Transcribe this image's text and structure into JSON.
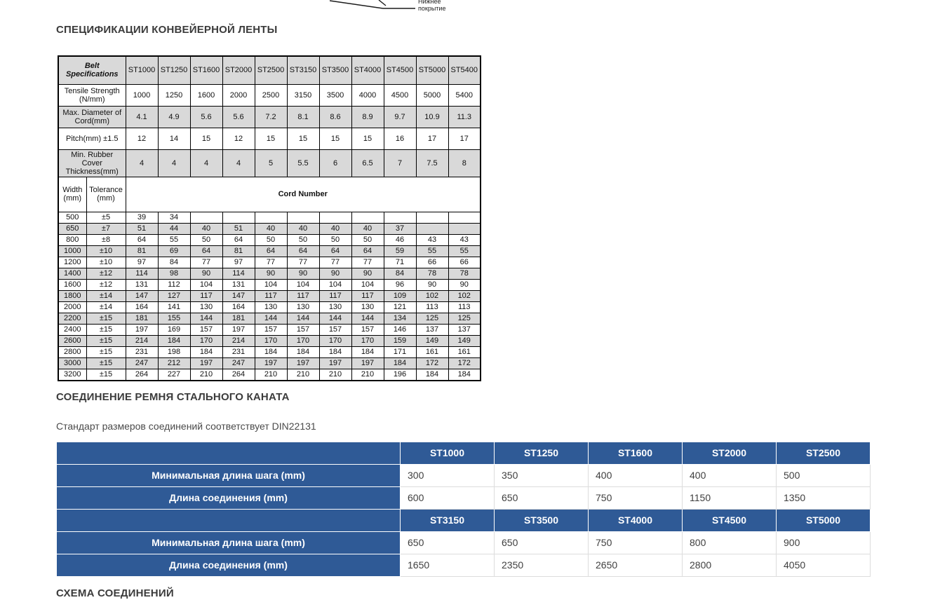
{
  "colors": {
    "table_shade": "#d9d9d9",
    "splice_blue": "#2f5a96",
    "heading_text": "#3b3b3b"
  },
  "diagram_fragment": {
    "label": "Нижнее покрытие"
  },
  "sections": {
    "specs_heading": "СПЕЦИФИКАЦИИ КОНВЕЙЕРНОЙ ЛЕНТЫ",
    "splice_heading": "СОЕДИНЕНИЕ РЕМНЯ СТАЛЬНОГО КАНАТА",
    "splice_note": "Стандарт размеров соединений соответствует DIN22131",
    "diagram_heading": "СХЕМА СОЕДИНЕНИЙ"
  },
  "spec_table": {
    "corner_label": "Belt Specifications",
    "columns": [
      "ST1000",
      "ST1250",
      "ST1600",
      "ST2000",
      "ST2500",
      "ST3150",
      "ST3500",
      "ST4000",
      "ST4500",
      "ST5000",
      "ST5400"
    ],
    "property_rows": [
      {
        "label": "Tensile Strength (N/mm)",
        "values": [
          "1000",
          "1250",
          "1600",
          "2000",
          "2500",
          "3150",
          "3500",
          "4000",
          "4500",
          "5000",
          "5400"
        ]
      },
      {
        "label": "Max. Diameter of Cord(mm)",
        "values": [
          "4.1",
          "4.9",
          "5.6",
          "5.6",
          "7.2",
          "8.1",
          "8.6",
          "8.9",
          "9.7",
          "10.9",
          "11.3"
        ]
      },
      {
        "label": "Pitch(mm) ±1.5",
        "values": [
          "12",
          "14",
          "15",
          "12",
          "15",
          "15",
          "15",
          "15",
          "16",
          "17",
          "17"
        ]
      },
      {
        "label": "Min. Rubber Cover Thickness(mm)",
        "values": [
          "4",
          "4",
          "4",
          "4",
          "5",
          "5.5",
          "6",
          "6.5",
          "7",
          "7.5",
          "8"
        ]
      }
    ],
    "width_header": "Width (mm)",
    "tolerance_header": "Tolerance (mm)",
    "cord_header": "Cord Number",
    "cord_rows": [
      {
        "width": "500",
        "tolerance": "±5",
        "values": [
          "39",
          "34",
          "",
          "",
          "",
          "",
          "",
          "",
          "",
          "",
          ""
        ]
      },
      {
        "width": "650",
        "tolerance": "±7",
        "values": [
          "51",
          "44",
          "40",
          "51",
          "40",
          "40",
          "40",
          "40",
          "37",
          "",
          ""
        ]
      },
      {
        "width": "800",
        "tolerance": "±8",
        "values": [
          "64",
          "55",
          "50",
          "64",
          "50",
          "50",
          "50",
          "50",
          "46",
          "43",
          "43"
        ]
      },
      {
        "width": "1000",
        "tolerance": "±10",
        "values": [
          "81",
          "69",
          "64",
          "81",
          "64",
          "64",
          "64",
          "64",
          "59",
          "55",
          "55"
        ]
      },
      {
        "width": "1200",
        "tolerance": "±10",
        "values": [
          "97",
          "84",
          "77",
          "97",
          "77",
          "77",
          "77",
          "77",
          "71",
          "66",
          "66"
        ]
      },
      {
        "width": "1400",
        "tolerance": "±12",
        "values": [
          "114",
          "98",
          "90",
          "114",
          "90",
          "90",
          "90",
          "90",
          "84",
          "78",
          "78"
        ]
      },
      {
        "width": "1600",
        "tolerance": "±12",
        "values": [
          "131",
          "112",
          "104",
          "131",
          "104",
          "104",
          "104",
          "104",
          "96",
          "90",
          "90"
        ]
      },
      {
        "width": "1800",
        "tolerance": "±14",
        "values": [
          "147",
          "127",
          "117",
          "147",
          "117",
          "117",
          "117",
          "117",
          "109",
          "102",
          "102"
        ]
      },
      {
        "width": "2000",
        "tolerance": "±14",
        "values": [
          "164",
          "141",
          "130",
          "164",
          "130",
          "130",
          "130",
          "130",
          "121",
          "113",
          "113"
        ]
      },
      {
        "width": "2200",
        "tolerance": "±15",
        "values": [
          "181",
          "155",
          "144",
          "181",
          "144",
          "144",
          "144",
          "144",
          "134",
          "125",
          "125"
        ]
      },
      {
        "width": "2400",
        "tolerance": "±15",
        "values": [
          "197",
          "169",
          "157",
          "197",
          "157",
          "157",
          "157",
          "157",
          "146",
          "137",
          "137"
        ]
      },
      {
        "width": "2600",
        "tolerance": "±15",
        "values": [
          "214",
          "184",
          "170",
          "214",
          "170",
          "170",
          "170",
          "170",
          "159",
          "149",
          "149"
        ]
      },
      {
        "width": "2800",
        "tolerance": "±15",
        "values": [
          "231",
          "198",
          "184",
          "231",
          "184",
          "184",
          "184",
          "184",
          "171",
          "161",
          "161"
        ]
      },
      {
        "width": "3000",
        "tolerance": "±15",
        "values": [
          "247",
          "212",
          "197",
          "247",
          "197",
          "197",
          "197",
          "197",
          "184",
          "172",
          "172"
        ]
      },
      {
        "width": "3200",
        "tolerance": "±15",
        "values": [
          "264",
          "227",
          "210",
          "264",
          "210",
          "210",
          "210",
          "210",
          "196",
          "184",
          "184"
        ]
      }
    ]
  },
  "splice_table": {
    "groups": [
      {
        "columns": [
          "ST1000",
          "ST1250",
          "ST1600",
          "ST2000",
          "ST2500"
        ],
        "rows": [
          {
            "label": "Минимальная длина шага (mm)",
            "values": [
              "300",
              "350",
              "400",
              "400",
              "500"
            ]
          },
          {
            "label": "Длина соединения (mm)",
            "values": [
              "600",
              "650",
              "750",
              "1150",
              "1350"
            ]
          }
        ]
      },
      {
        "columns": [
          "ST3150",
          "ST3500",
          "ST4000",
          "ST4500",
          "ST5000"
        ],
        "rows": [
          {
            "label": "Минимальная длина шага (mm)",
            "values": [
              "650",
              "650",
              "750",
              "800",
              "900"
            ]
          },
          {
            "label": "Длина соединения (mm)",
            "values": [
              "1650",
              "2350",
              "2650",
              "2800",
              "4050"
            ]
          }
        ]
      }
    ]
  }
}
